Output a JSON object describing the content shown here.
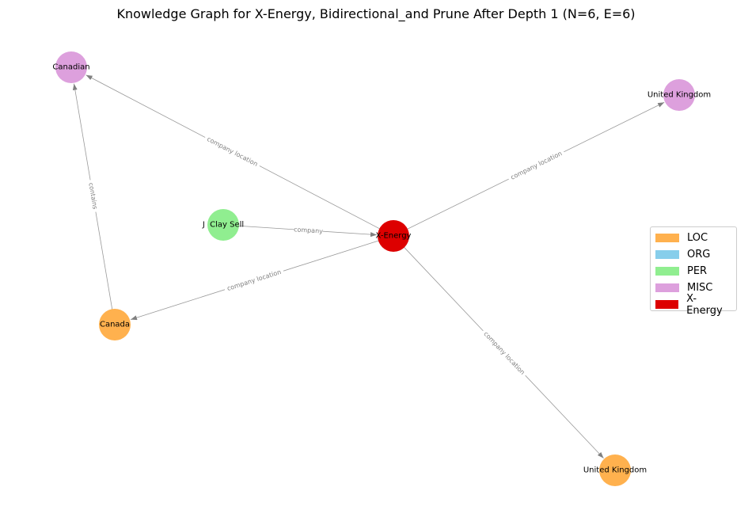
{
  "title": "Knowledge Graph for X-Energy, Bidirectional_and Prune After Depth 1 (N=6, E=6)",
  "colors": {
    "LOC": "#ffb14e",
    "ORG": "#87ceeb",
    "PER": "#90ee90",
    "MISC": "#dda0dd",
    "X-Energy": "#dd0000",
    "edge": "#999999"
  },
  "legend": [
    {
      "label": "LOC",
      "color": "#ffb14e"
    },
    {
      "label": "ORG",
      "color": "#87ceeb"
    },
    {
      "label": "PER",
      "color": "#90ee90"
    },
    {
      "label": "MISC",
      "color": "#dda0dd"
    },
    {
      "label": "X-Energy",
      "color": "#dd0000"
    }
  ],
  "nodes": [
    {
      "id": "xenergy",
      "label": "X-Energy",
      "type": "X-Energy"
    },
    {
      "id": "canadian",
      "label": "Canadian",
      "type": "MISC"
    },
    {
      "id": "uk_misc",
      "label": "United Kingdom",
      "type": "MISC"
    },
    {
      "id": "jclaysell",
      "label": "J  Clay Sell",
      "type": "PER"
    },
    {
      "id": "canada",
      "label": "Canada",
      "type": "LOC"
    },
    {
      "id": "uk_loc",
      "label": "United Kingdom",
      "type": "LOC"
    }
  ],
  "edges": [
    {
      "source": "xenergy",
      "target": "canadian",
      "label": "company location"
    },
    {
      "source": "xenergy",
      "target": "uk_misc",
      "label": "company location"
    },
    {
      "source": "jclaysell",
      "target": "xenergy",
      "label": "company"
    },
    {
      "source": "xenergy",
      "target": "canada",
      "label": "company location"
    },
    {
      "source": "xenergy",
      "target": "uk_loc",
      "label": "company location"
    },
    {
      "source": "canada",
      "target": "canadian",
      "label": "contains"
    }
  ]
}
